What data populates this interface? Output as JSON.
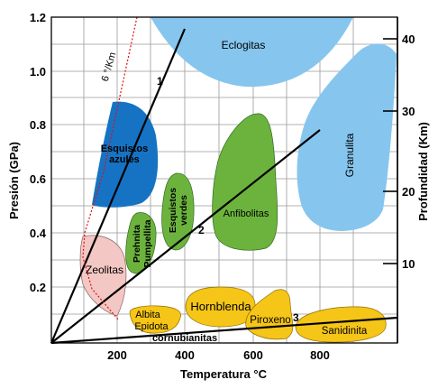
{
  "axes": {
    "x_title": "Temperatura °C",
    "y_left_title": "Presión (GPa)",
    "y_right_title": "Profundidad (Km)",
    "x_ticks": [
      "200",
      "400",
      "600",
      "800"
    ],
    "y_ticks": [
      "0.2",
      "0.4",
      "0.6",
      "0.8",
      "1.0",
      "1.2"
    ],
    "depth_ticks": [
      "10",
      "20",
      "30",
      "40"
    ]
  },
  "gradient": {
    "label": "6 °/Km"
  },
  "trajectories": {
    "line1": "1",
    "line2": "2",
    "line3": "3"
  },
  "facies": {
    "eclogitas": "Eclogitas",
    "esquistos_azules_1": "Esquistos",
    "esquistos_azules_2": "azules",
    "esquistos_verdes_1": "Esquistos",
    "esquistos_verdes_2": "verdes",
    "prehnita_1": "Prehnita",
    "prehnita_2": "Pumpellita",
    "zeolitas": "Zeolitas",
    "anfibolitas": "Anfibolitas",
    "granulita": "Granulita",
    "albita_1": "Albita",
    "albita_2": "Epidota",
    "hornblenda": "Hornblenda",
    "piroxeno": "Piroxeno",
    "sanidinita": "Sanidinita",
    "cornubianitas": "cornubianitas"
  },
  "colors": {
    "eclogite_blue": "#86c6ee",
    "blueschist": "#1673c4",
    "greenschist": "#6cb33e",
    "zeolite": "#f3c7c3",
    "hornfels_yellow": "#f5c518",
    "grid": "#9a9a9a"
  }
}
